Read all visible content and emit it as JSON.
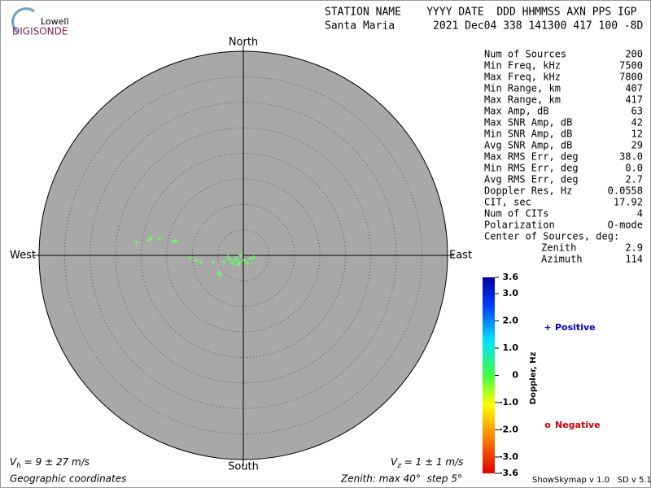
{
  "logo": {
    "top": "Lowell",
    "bottom": "DIGISONDE"
  },
  "header": {
    "labels": "STATION NAME    YYYY DATE  DDD HHMMSS AXN PPS IGP",
    "values": "Santa Maria      2021 Dec04 338 141300 417 100 -8D"
  },
  "stats": [
    [
      "Num of Sources",
      "200"
    ],
    [
      "Min Freq, kHz",
      "7500"
    ],
    [
      "Max Freq, kHz",
      "7800"
    ],
    [
      "Min Range, km",
      "407"
    ],
    [
      "Max Range, km",
      "417"
    ],
    [
      "Max Amp, dB",
      "63"
    ],
    [
      "Max SNR Amp, dB",
      "42"
    ],
    [
      "Min SNR Amp, dB",
      "12"
    ],
    [
      "Avg SNR Amp, dB",
      "29"
    ],
    [
      "Max RMS Err, deg",
      "38.0"
    ],
    [
      "Min RMS Err, deg",
      "0.0"
    ],
    [
      "Avg RMS Err, deg",
      "2.7"
    ],
    [
      "Doppler Res, Hz",
      "0.0558"
    ],
    [
      "CIT, sec",
      "17.92"
    ],
    [
      "Num of CITs",
      "4"
    ],
    [
      "Polarization",
      "O-mode"
    ]
  ],
  "center": {
    "title": "Center of Sources, deg:",
    "rows": [
      [
        "Zenith",
        "2.9"
      ],
      [
        "Azimuth",
        "114"
      ]
    ]
  },
  "chart_data": {
    "type": "scatter",
    "directions": {
      "north": "North",
      "south": "South",
      "east": "East",
      "west": "West"
    },
    "xlim": [
      -40,
      40
    ],
    "ylim": [
      -40,
      40
    ],
    "rings": [
      5,
      10,
      15,
      20,
      25,
      30,
      35
    ],
    "color": "#66ff66",
    "x": [
      -21.0,
      -18.5,
      -18.0,
      -16.4,
      -13.7,
      -13.2,
      -10.5,
      -9.2,
      -8.3,
      -5.9,
      -4.5,
      -3.8,
      -3.0,
      -2.2,
      -1.6,
      -1.4,
      -0.8,
      -0.5,
      0.2,
      1.4,
      -2.6,
      -1.0,
      0.8,
      2.0,
      -4.8
    ],
    "y": [
      2.5,
      3.0,
      3.4,
      3.2,
      2.7,
      2.9,
      -0.5,
      -1.0,
      -1.4,
      -1.3,
      -3.8,
      -1.3,
      -0.3,
      -1.6,
      -1.0,
      -0.6,
      -1.3,
      0.0,
      -1.0,
      -0.6,
      -0.8,
      -1.8,
      -1.5,
      -0.4,
      -3.4
    ],
    "colorbar": {
      "title": "Doppler, Hz",
      "lim": [
        -3.6,
        3.6
      ],
      "ticks": [
        3.6,
        {
          "value": 3,
          "label": "3.0"
        },
        {
          "value": 2,
          "label": "2.0"
        },
        {
          "value": 1,
          "label": "1.0"
        },
        0,
        {
          "value": -1,
          "label": "-1.0"
        },
        {
          "value": -2,
          "label": "-2.0"
        },
        {
          "value": -3,
          "label": "-3.0"
        },
        -3.6
      ]
    },
    "legend": [
      {
        "symbol": "+",
        "label": "Positive",
        "color": "#0000cc"
      },
      {
        "symbol": "o",
        "label": "Negative",
        "color": "#cc0000"
      }
    ]
  },
  "footer": {
    "vh": [
      "V",
      "h",
      " = 9 ± 27 m/s"
    ],
    "vz": [
      "V",
      "z",
      " = 1 ± 1 m/s"
    ],
    "coords": "Geographic coordinates",
    "zenith": "Zenith: max 40°  step 5°",
    "version": "ShowSkymap v 1.0   SD v 5.1"
  }
}
